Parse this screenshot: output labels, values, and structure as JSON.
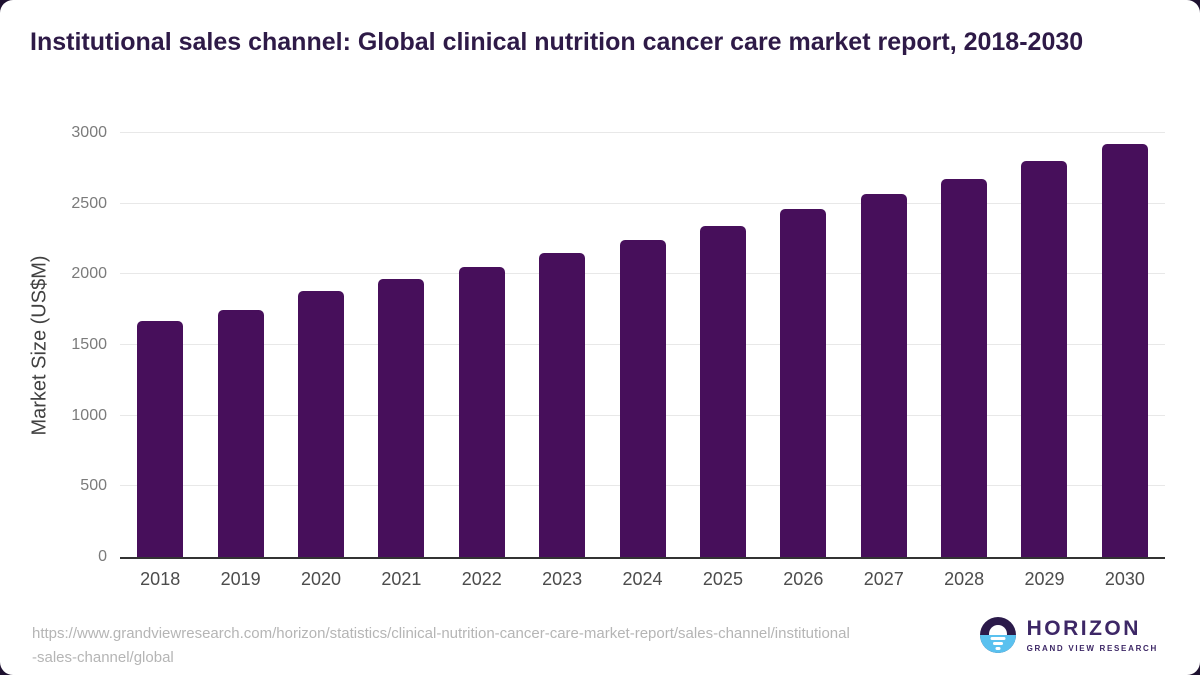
{
  "title": "Institutional sales channel: Global clinical nutrition cancer care market report, 2018-2030",
  "chart_data": {
    "type": "bar",
    "categories": [
      "2018",
      "2019",
      "2020",
      "2021",
      "2022",
      "2023",
      "2024",
      "2025",
      "2026",
      "2027",
      "2028",
      "2029",
      "2030"
    ],
    "values": [
      1670,
      1745,
      1885,
      1965,
      2055,
      2150,
      2245,
      2345,
      2460,
      2565,
      2675,
      2805,
      2925
    ],
    "title": "Institutional sales channel: Global clinical nutrition cancer care market report, 2018-2030",
    "xlabel": "",
    "ylabel": "Market Size (US$M)",
    "ylim": [
      0,
      3000
    ],
    "yticks": [
      0,
      500,
      1000,
      1500,
      2000,
      2500,
      3000
    ],
    "grid": true,
    "legend_position": "none",
    "bar_color": "#470f5b"
  },
  "colors": {
    "bar": "#470f5b",
    "title_text": "#2e1a47",
    "axis_line": "#333333",
    "gridline": "#e8e8e8",
    "tick_text": "#7b7b7b",
    "category_text": "#4c4c4c",
    "source_text": "#b5b5b5",
    "logo_purple": "#2b1a4a",
    "logo_blue": "#5ac1ef",
    "logo_text": "#3d2766"
  },
  "footer": {
    "source_url_line1": "https://www.grandviewresearch.com/horizon/statistics/clinical-nutrition-cancer-care-market-report/sales-channel/institutional",
    "source_url_line2": "-sales-channel/global",
    "logo": {
      "icon": "horizon-sunset-icon",
      "name": "HORIZON",
      "tagline": "GRAND VIEW RESEARCH"
    }
  }
}
